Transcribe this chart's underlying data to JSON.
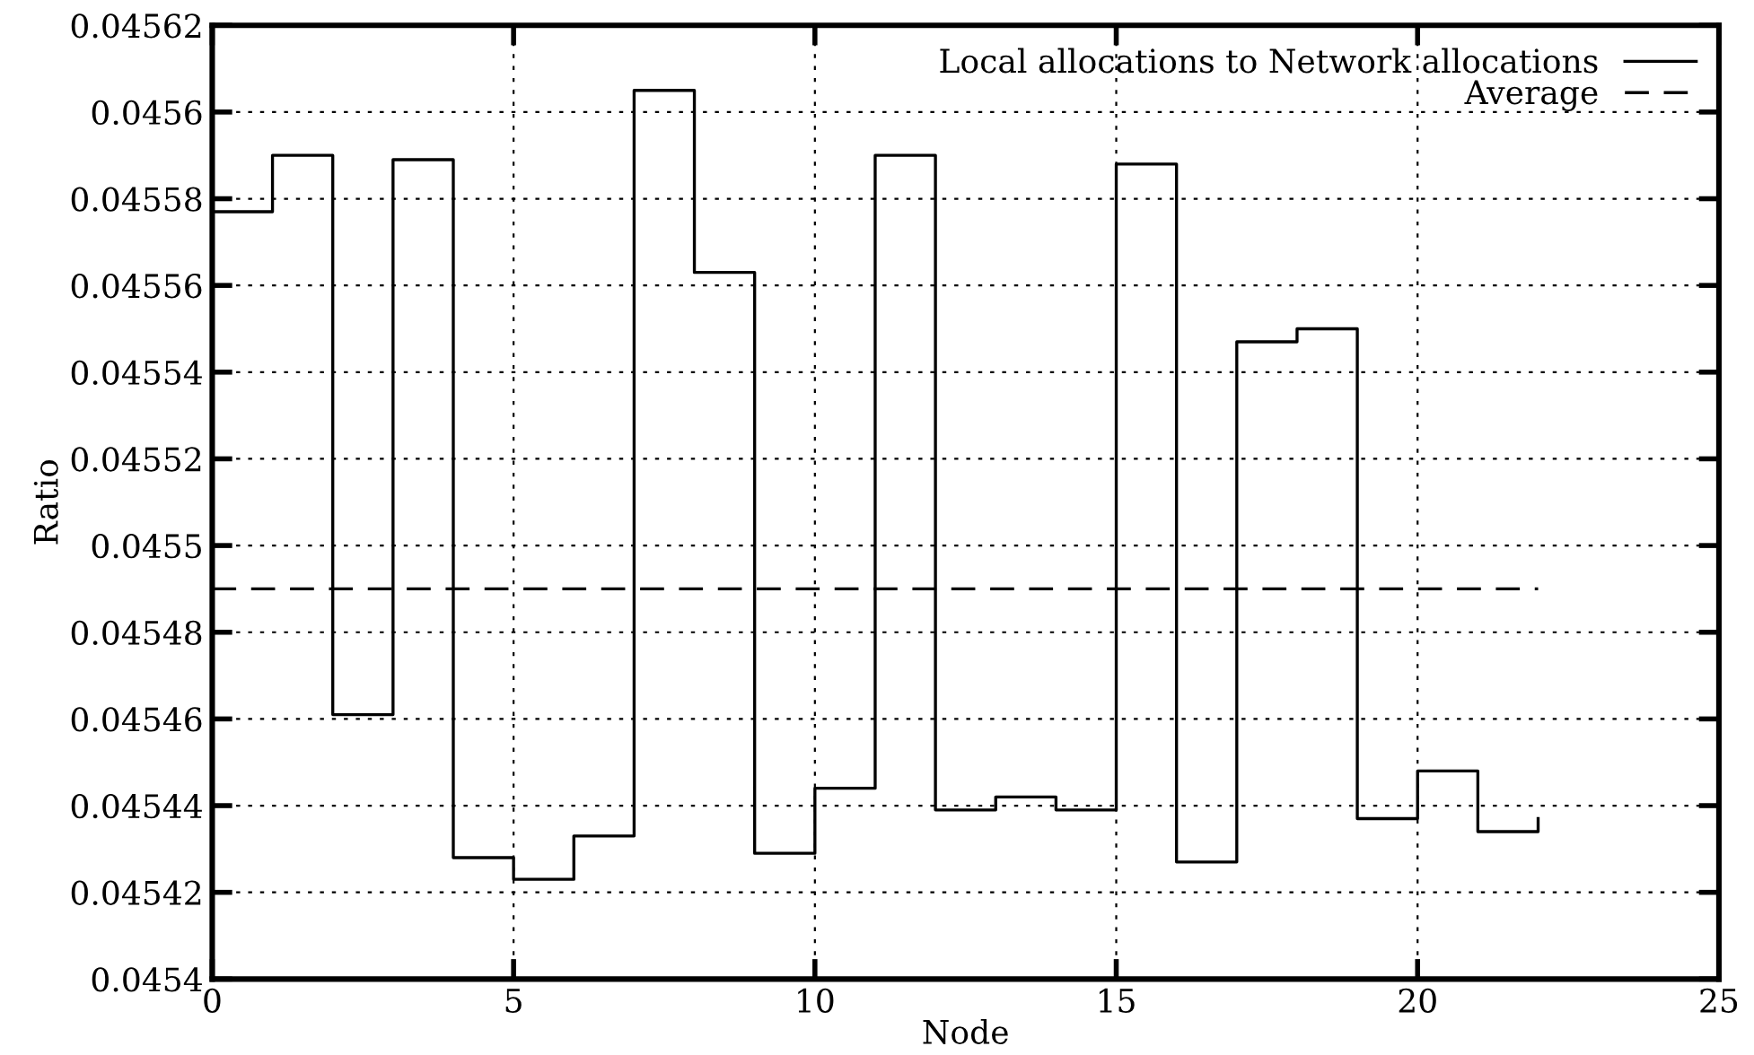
{
  "chart_data": {
    "type": "step",
    "xlabel": "Node",
    "ylabel": "Ratio",
    "xlim": [
      0,
      25
    ],
    "xticks": [
      0,
      5,
      10,
      15,
      20,
      25
    ],
    "ylim": [
      0.0454,
      0.04562
    ],
    "yticks": [
      0.0454,
      0.04542,
      0.04544,
      0.04546,
      0.04548,
      0.0455,
      0.04552,
      0.04554,
      0.04556,
      0.04558,
      0.0456,
      0.04562
    ],
    "grid": true,
    "legend": "top right",
    "marker": "none",
    "series": [
      {
        "name": "Local allocations to Network allocations",
        "color": "#000000",
        "line_style": "solid",
        "x": [
          0,
          1,
          2,
          3,
          4,
          5,
          6,
          7,
          8,
          9,
          10,
          11,
          12,
          13,
          14,
          15,
          16,
          17,
          18,
          19,
          20,
          21,
          22
        ],
        "values": [
          0.045577,
          0.04559,
          0.045461,
          0.045589,
          0.045428,
          0.045423,
          0.045433,
          0.045605,
          0.045563,
          0.045429,
          0.045444,
          0.04559,
          0.045439,
          0.045442,
          0.045439,
          0.045588,
          0.045427,
          0.045547,
          0.04555,
          0.045437,
          0.045448,
          0.045434,
          0.045437
        ]
      },
      {
        "name": "Average",
        "type": "line",
        "color": "#000000",
        "line_style": "dashed",
        "x": [
          0,
          22
        ],
        "values": [
          0.04549,
          0.04549
        ]
      }
    ]
  }
}
